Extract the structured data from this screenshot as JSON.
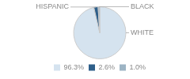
{
  "chart_data": {
    "type": "pie",
    "categories": [
      "WHITE",
      "HISPANIC",
      "BLACK"
    ],
    "values": [
      96.3,
      2.6,
      1.0
    ],
    "value_labels": [
      "96.3%",
      "2.6%",
      "1.0%"
    ],
    "colors": [
      "#d5e3ef",
      "#2e5f8a",
      "#9db4c4"
    ],
    "legend": "bottom"
  }
}
